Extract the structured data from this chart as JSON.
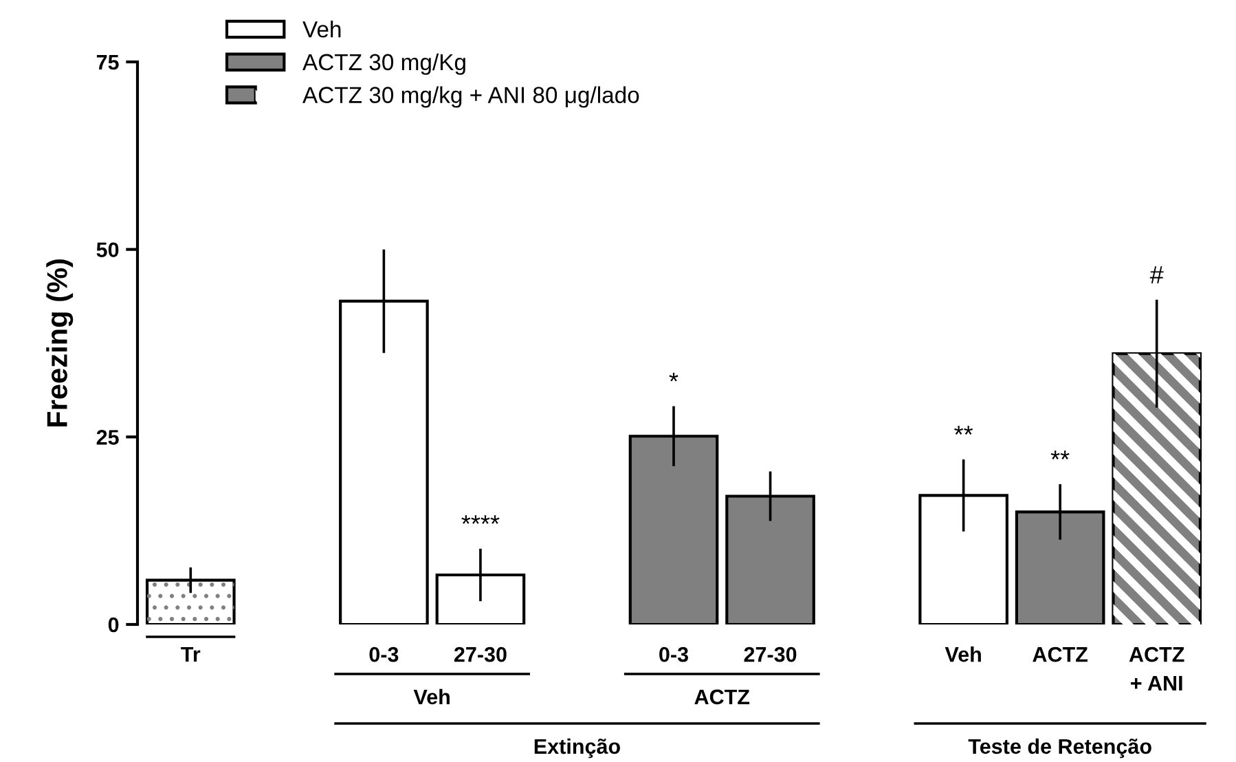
{
  "chart_data": {
    "type": "bar",
    "ylabel": "Freezing (%)",
    "categories": [
      "Tr",
      null,
      "0-3",
      "27-30",
      null,
      "0-3",
      "27-30",
      null,
      "Veh",
      "ACTZ",
      "ACTZ\n+ ANI"
    ],
    "series": [
      {
        "color": "#ffffff",
        "values": [
          5.9,
          null,
          null,
          null,
          null,
          null,
          null,
          null,
          null,
          null,
          null
        ],
        "errors": [
          1.7,
          null,
          null,
          null,
          null,
          null,
          null,
          null,
          null,
          null,
          null
        ]
      },
      {
        "name": "Veh",
        "color": "#ffffff",
        "values": [
          null,
          null,
          43.1,
          6.6,
          null,
          null,
          null,
          null,
          17.2,
          null,
          null
        ],
        "errors": [
          null,
          null,
          6.9,
          3.5,
          null,
          null,
          null,
          null,
          4.8,
          null,
          null
        ],
        "value_labels": [
          null,
          null,
          null,
          "****",
          null,
          null,
          null,
          null,
          "**",
          null,
          null
        ]
      },
      {
        "name": "ACTZ 30 mg/Kg",
        "color": "#808080",
        "values": [
          null,
          null,
          null,
          null,
          null,
          25.1,
          17.1,
          null,
          null,
          15.0,
          null
        ],
        "errors": [
          null,
          null,
          null,
          null,
          null,
          4.0,
          3.3,
          null,
          null,
          3.7,
          null
        ],
        "value_labels": [
          null,
          null,
          null,
          null,
          null,
          "*",
          null,
          null,
          null,
          "**",
          null
        ]
      },
      {
        "name": "ACTZ 30 mg/kg + ANI 80 μg/lado",
        "color": "#808080",
        "values": [
          null,
          null,
          null,
          null,
          null,
          null,
          null,
          null,
          null,
          null,
          36.1
        ],
        "errors": [
          null,
          null,
          null,
          null,
          null,
          null,
          null,
          null,
          null,
          null,
          7.2
        ],
        "value_labels": [
          null,
          null,
          null,
          null,
          null,
          null,
          null,
          null,
          null,
          null,
          "#"
        ]
      }
    ],
    "ylim": [
      0,
      75
    ],
    "yticks": [
      0,
      25,
      50,
      75
    ],
    "grid": false,
    "legend": "top left",
    "annotations": [
      "Veh",
      "ACTZ",
      "Extinção",
      "Teste de Retenção"
    ]
  }
}
